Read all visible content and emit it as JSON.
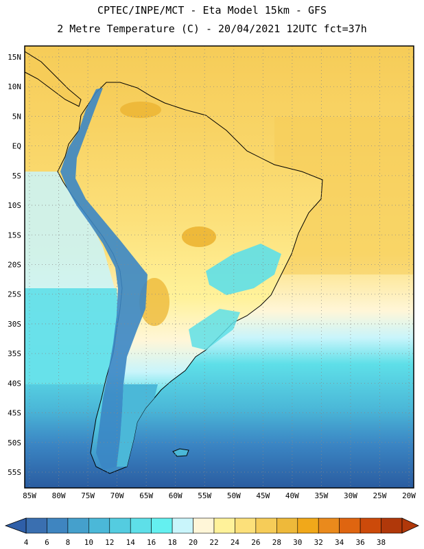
{
  "header": {
    "line1": "CPTEC/INPE/MCT -  Eta Model 15km - GFS",
    "line2": "2 Metre Temperature (C) - 20/04/2021 12UTC fct=37h"
  },
  "axes": {
    "lon_labels": [
      "85W",
      "80W",
      "75W",
      "70W",
      "65W",
      "60W",
      "55W",
      "50W",
      "45W",
      "40W",
      "35W",
      "30W",
      "25W",
      "20W"
    ],
    "lat_labels": [
      "15N",
      "10N",
      "5N",
      "EQ",
      "5S",
      "10S",
      "15S",
      "20S",
      "25S",
      "30S",
      "35S",
      "40S",
      "45S",
      "50S",
      "55S"
    ]
  },
  "colorbar": {
    "labels": [
      "4",
      "6",
      "8",
      "10",
      "12",
      "14",
      "16",
      "18",
      "20",
      "22",
      "24",
      "26",
      "28",
      "30",
      "32",
      "34",
      "36",
      "38"
    ],
    "colors": [
      "#3a6fb0",
      "#3f85c0",
      "#45a0cc",
      "#4bb8d8",
      "#54cce0",
      "#5edfe8",
      "#64f0f0",
      "#c9f5fb",
      "#fff6d8",
      "#fff29a",
      "#fce07a",
      "#f6cc58",
      "#eeb93a",
      "#f1a81a",
      "#ea8a1c",
      "#df6510",
      "#cc4a0a",
      "#b0380a"
    ]
  },
  "map": {
    "colors": {
      "sea_deep": "#2a5ca0",
      "sea_mid": "#3b86c4",
      "sea_light": "#55cbe0",
      "sea_pale": "#c9f5fb",
      "sea_cream": "#fff6d8",
      "sea_warm": "#fce07a",
      "land_warm": "#fce07a",
      "land_hot": "#eeb93a",
      "andes": "#3b86c4",
      "south_coolland": "#55cbe0"
    }
  }
}
